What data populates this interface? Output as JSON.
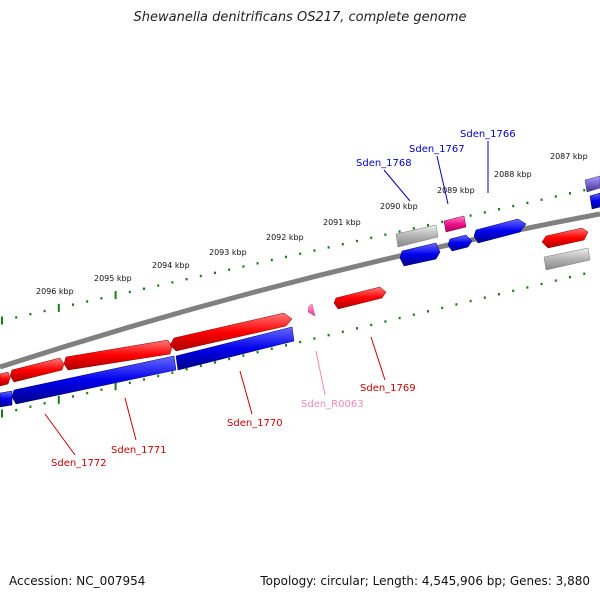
{
  "title": "Shewanella denitrificans OS217, complete genome",
  "footer": {
    "accession": "Accession: NC_007954",
    "summary": "Topology: circular; Length: 4,545,906 bp; Genes: 3,880"
  },
  "colors": {
    "forward_gene": "#ff0000",
    "reverse_gene": "#0000dd",
    "pseudo_gene": "#b4b4b4",
    "rna_gene": "#ff66aa",
    "backbone": "#808080",
    "tick": "#1a7a1a"
  },
  "scale_ticks": [
    {
      "label": "2087 kbp"
    },
    {
      "label": "2088 kbp"
    },
    {
      "label": "2089 kbp"
    },
    {
      "label": "2090 kbp"
    },
    {
      "label": "2091 kbp"
    },
    {
      "label": "2092 kbp"
    },
    {
      "label": "2093 kbp"
    },
    {
      "label": "2094 kbp"
    },
    {
      "label": "2095 kbp"
    },
    {
      "label": "2096 kbp"
    }
  ],
  "gene_labels": [
    {
      "name": "Sden_1766",
      "color": "#0000cc"
    },
    {
      "name": "Sden_1767",
      "color": "#0000cc"
    },
    {
      "name": "Sden_1768",
      "color": "#0000cc"
    },
    {
      "name": "Sden_1769",
      "color": "#cc0000"
    },
    {
      "name": "Sden_R0063",
      "color": "#ee88bb"
    },
    {
      "name": "Sden_1770",
      "color": "#cc0000"
    },
    {
      "name": "Sden_1771",
      "color": "#cc0000"
    },
    {
      "name": "Sden_1772",
      "color": "#cc0000"
    }
  ]
}
